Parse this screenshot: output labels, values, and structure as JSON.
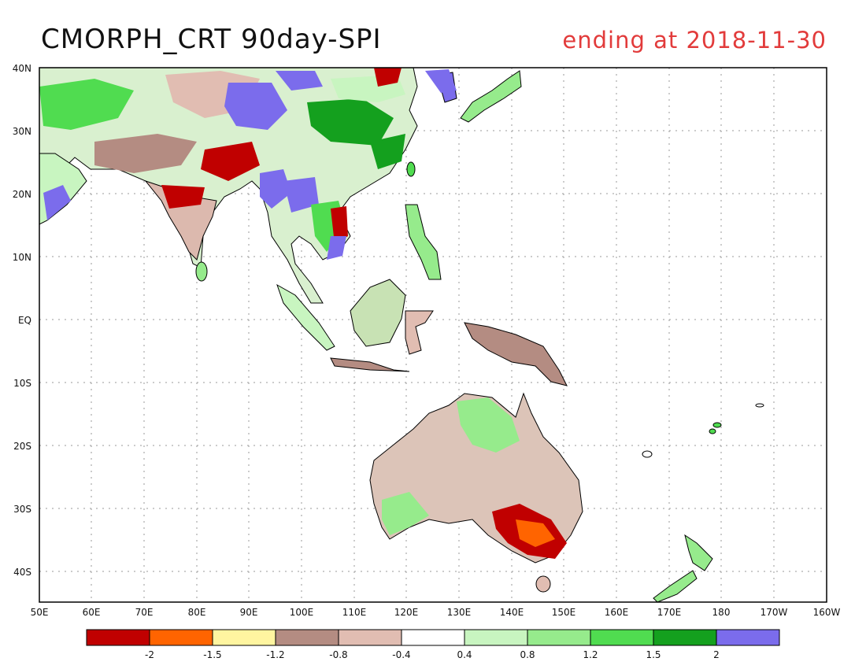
{
  "title": "CMORPH_CRT 90day-SPI",
  "subtitle": "ending at 2018-11-30",
  "colors": {
    "title": "#111111",
    "subtitle": "#e23b3b",
    "ocean": "#ffffff",
    "coast": "#000000"
  },
  "map": {
    "lon_labels": [
      "50E",
      "60E",
      "70E",
      "80E",
      "90E",
      "100E",
      "110E",
      "120E",
      "130E",
      "140E",
      "150E",
      "160E",
      "170E",
      "180",
      "170W",
      "160W"
    ],
    "lat_labels": [
      "40N",
      "30N",
      "20N",
      "10N",
      "EQ",
      "10S",
      "20S",
      "30S",
      "40S"
    ]
  },
  "legend": {
    "bins": [
      {
        "color": "#c00000"
      },
      {
        "color": "#ff6400"
      },
      {
        "color": "#fff5a0"
      },
      {
        "color": "#b48c82"
      },
      {
        "color": "#e1bdb2"
      },
      {
        "color": "#ffffff"
      },
      {
        "color": "#c8f5c0"
      },
      {
        "color": "#96eb8c"
      },
      {
        "color": "#50dc50"
      },
      {
        "color": "#14a01e"
      },
      {
        "color": "#7b6cec"
      }
    ],
    "labels": [
      "-2",
      "-1.5",
      "-1.2",
      "-0.8",
      "-0.4",
      "0.4",
      "0.8",
      "1.2",
      "1.5",
      "2"
    ]
  }
}
